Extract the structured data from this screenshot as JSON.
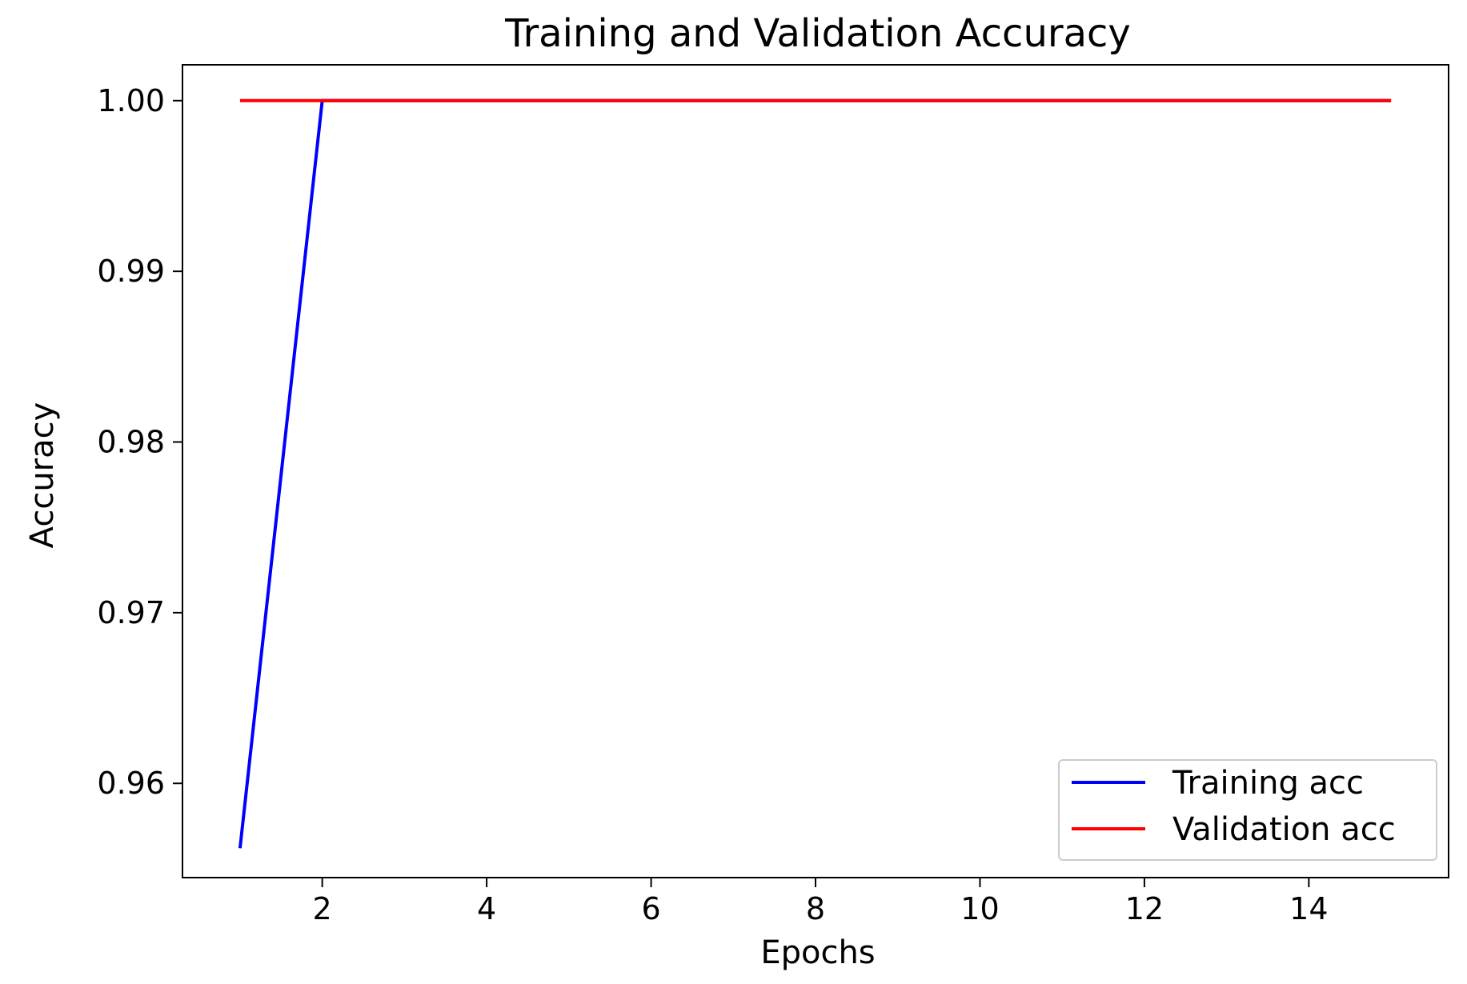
{
  "chart_data": {
    "type": "line",
    "title": "Training and Validation Accuracy",
    "xlabel": "Epochs",
    "ylabel": "Accuracy",
    "xlim": [
      0.3,
      15.7
    ],
    "ylim": [
      0.95448,
      1.0021
    ],
    "x_ticks": [
      2,
      4,
      6,
      8,
      10,
      12,
      14
    ],
    "y_ticks": [
      0.96,
      0.97,
      0.98,
      0.99,
      1.0
    ],
    "x_tick_labels": [
      "2",
      "4",
      "6",
      "8",
      "10",
      "12",
      "14"
    ],
    "y_tick_labels": [
      "0.96",
      "0.97",
      "0.98",
      "0.99",
      "1.00"
    ],
    "grid": false,
    "legend_position": "lower-right",
    "series": [
      {
        "name": "Training acc",
        "color": "#0000ff",
        "x": [
          1,
          2,
          3,
          4,
          5,
          6,
          7,
          8,
          9,
          10,
          11,
          12,
          13,
          14,
          15
        ],
        "y": [
          0.9562,
          1.0,
          1.0,
          1.0,
          1.0,
          1.0,
          1.0,
          1.0,
          1.0,
          1.0,
          1.0,
          1.0,
          1.0,
          1.0,
          1.0
        ]
      },
      {
        "name": "Validation acc",
        "color": "#ff0000",
        "x": [
          1,
          2,
          3,
          4,
          5,
          6,
          7,
          8,
          9,
          10,
          11,
          12,
          13,
          14,
          15
        ],
        "y": [
          1.0,
          1.0,
          1.0,
          1.0,
          1.0,
          1.0,
          1.0,
          1.0,
          1.0,
          1.0,
          1.0,
          1.0,
          1.0,
          1.0,
          1.0
        ]
      }
    ]
  }
}
